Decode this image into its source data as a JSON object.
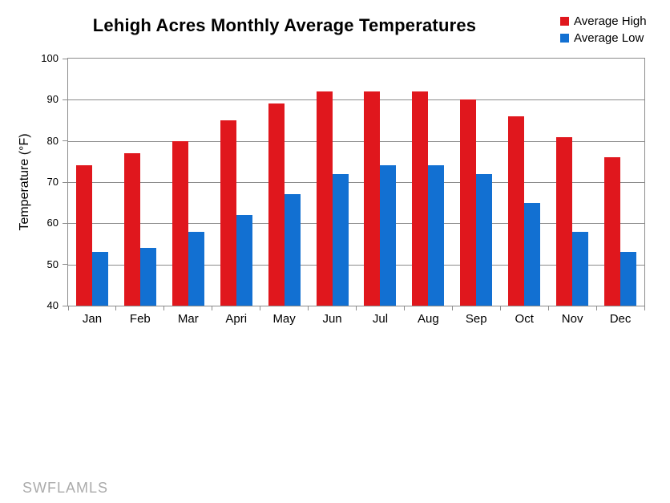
{
  "title": "Lehigh Acres Monthly Average Temperatures",
  "watermark": "SWFLAMLS",
  "chart_data": {
    "type": "bar",
    "title": "Lehigh Acres Monthly Average Temperatures",
    "categories": [
      "Jan",
      "Feb",
      "Mar",
      "Apri",
      "May",
      "Jun",
      "Jul",
      "Aug",
      "Sep",
      "Oct",
      "Nov",
      "Dec"
    ],
    "series": [
      {
        "name": "Average High",
        "color": "#e0171d",
        "values": [
          74,
          77,
          80,
          85,
          89,
          92,
          92,
          92,
          90,
          86,
          81,
          76
        ]
      },
      {
        "name": "Average Low",
        "color": "#1270d2",
        "values": [
          53,
          54,
          58,
          62,
          67,
          72,
          74,
          74,
          72,
          65,
          58,
          53
        ]
      }
    ],
    "xlabel": "",
    "ylabel": "Temperature (°F)",
    "ylim": [
      40,
      100
    ],
    "ytick_step": 10,
    "grid": true,
    "grid_color": "#8c8c8c",
    "legend_position": "top-right"
  }
}
